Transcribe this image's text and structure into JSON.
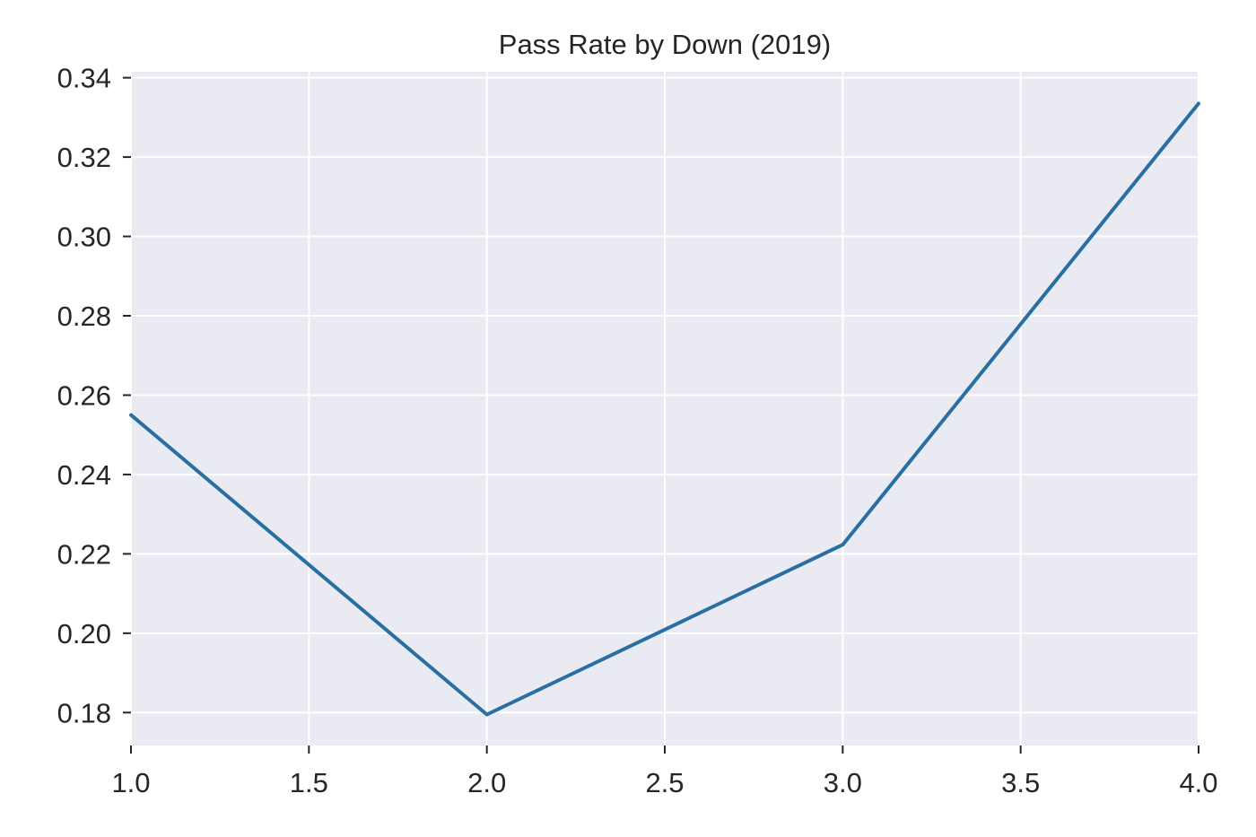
{
  "chart_data": {
    "type": "line",
    "title": "Pass Rate by Down (2019)",
    "xlabel": "",
    "ylabel": "",
    "x": [
      1.0,
      2.0,
      3.0,
      4.0
    ],
    "series": [
      {
        "values": [
          0.255,
          0.1795,
          0.2223,
          0.3335
        ],
        "color": "#2a6fa3"
      }
    ],
    "xlim": [
      1.0,
      4.0
    ],
    "ylim": [
      0.1717,
      0.3415
    ],
    "xticks": [
      1.0,
      1.5,
      2.0,
      2.5,
      3.0,
      3.5,
      4.0
    ],
    "xtick_labels": [
      "1.0",
      "1.5",
      "2.0",
      "2.5",
      "3.0",
      "3.5",
      "4.0"
    ],
    "yticks": [
      0.18,
      0.2,
      0.22,
      0.24,
      0.26,
      0.28,
      0.3,
      0.32,
      0.34
    ],
    "ytick_labels": [
      "0.18",
      "0.20",
      "0.22",
      "0.24",
      "0.26",
      "0.28",
      "0.30",
      "0.32",
      "0.34"
    ],
    "grid": true,
    "background": "#eaeaf2"
  }
}
